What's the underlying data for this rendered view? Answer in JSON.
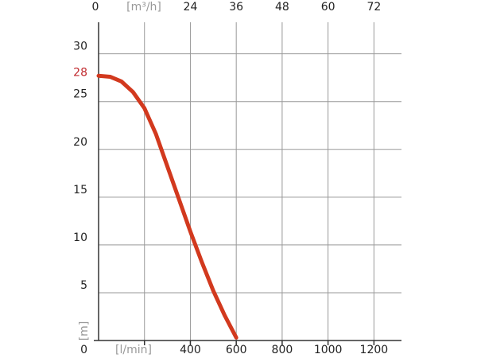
{
  "chart_data": {
    "type": "line",
    "x": [
      0,
      50,
      100,
      150,
      200,
      250,
      300,
      350,
      400,
      450,
      500,
      550,
      600
    ],
    "series": [
      {
        "color": "#d2391e",
        "values": [
          27.7,
          27.6,
          27.1,
          26.0,
          24.3,
          21.6,
          18.2,
          14.8,
          11.4,
          8.2,
          5.2,
          2.6,
          0.3
        ]
      }
    ],
    "xlim": [
      0,
      1320
    ],
    "ylim": [
      0,
      33.3
    ],
    "xticks": [
      400,
      600,
      800,
      1000,
      1200
    ],
    "xgridlines": [
      200,
      400,
      600,
      800,
      1000,
      1200
    ],
    "x_label": "[l/min]",
    "x2lim": [
      0,
      79.2
    ],
    "x2ticks": [
      0,
      24,
      36,
      48,
      60,
      72
    ],
    "x2_label": "[m³/h]",
    "yticks": [
      0,
      5,
      10,
      15,
      20,
      25,
      30
    ],
    "y_label": "[m]",
    "y_marker": {
      "value": 28,
      "color": "#c0282d"
    },
    "grid": true
  }
}
